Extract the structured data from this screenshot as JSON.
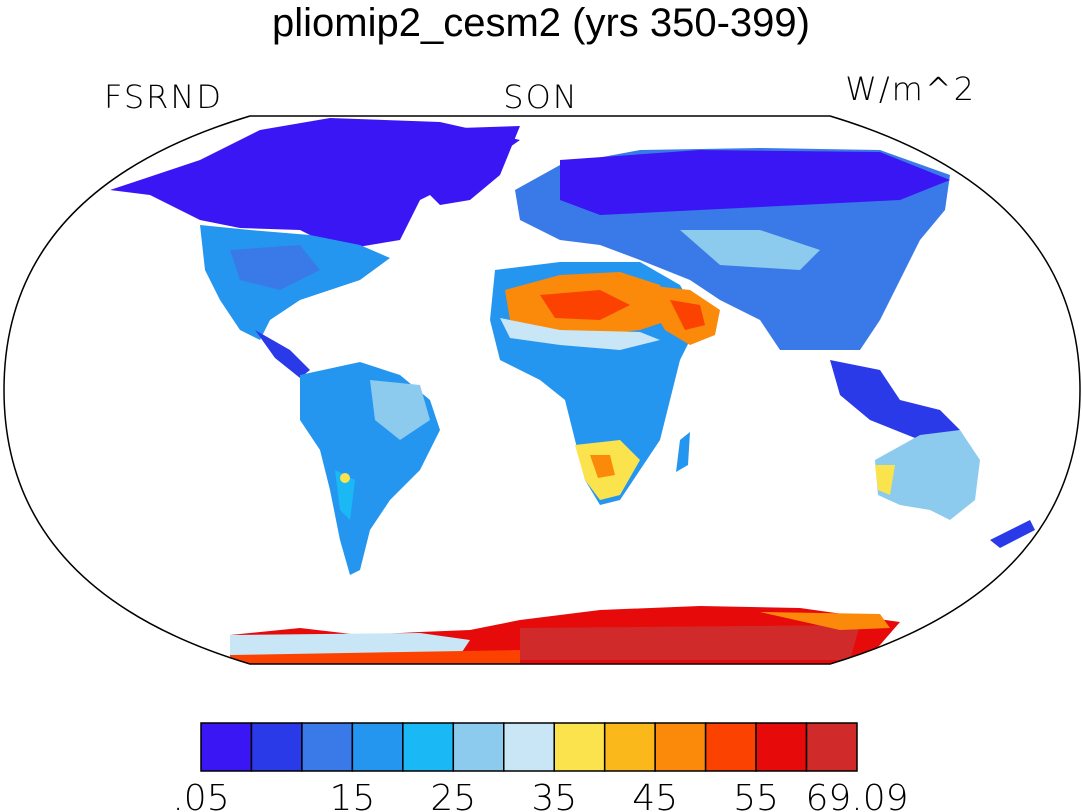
{
  "title": "pliomip2_cesm2 (yrs 350-399)",
  "left_label": "FSRND",
  "center_label": "SON",
  "right_label": "W/m^2",
  "colorbar": {
    "colors": [
      "#3a16f5",
      "#2a3ae8",
      "#3a7ae8",
      "#2596f0",
      "#1ab8f5",
      "#8ccaee",
      "#c8e6f6",
      "#fbe34e",
      "#fbb81a",
      "#fb8a0a",
      "#fb4200",
      "#e60a0a",
      "#d02a2a"
    ],
    "tick_labels": [
      ".05",
      "15",
      "25",
      "35",
      "45",
      "55",
      "69.09"
    ]
  },
  "regions": [
    {
      "name": "North America",
      "color": "#2a3ae8"
    },
    {
      "name": "Canada/Arctic",
      "color": "#3a16f5"
    },
    {
      "name": "South America",
      "color": "#2596f0"
    },
    {
      "name": "Africa",
      "color": "#2596f0"
    },
    {
      "name": "Sahara/Arabia",
      "color": "#fb8a0a"
    },
    {
      "name": "Eurasia",
      "color": "#3a7ae8"
    },
    {
      "name": "Siberia",
      "color": "#3a16f5"
    },
    {
      "name": "Australia",
      "color": "#8ccaee"
    },
    {
      "name": "Antarctica",
      "color": "#e60a0a"
    }
  ]
}
